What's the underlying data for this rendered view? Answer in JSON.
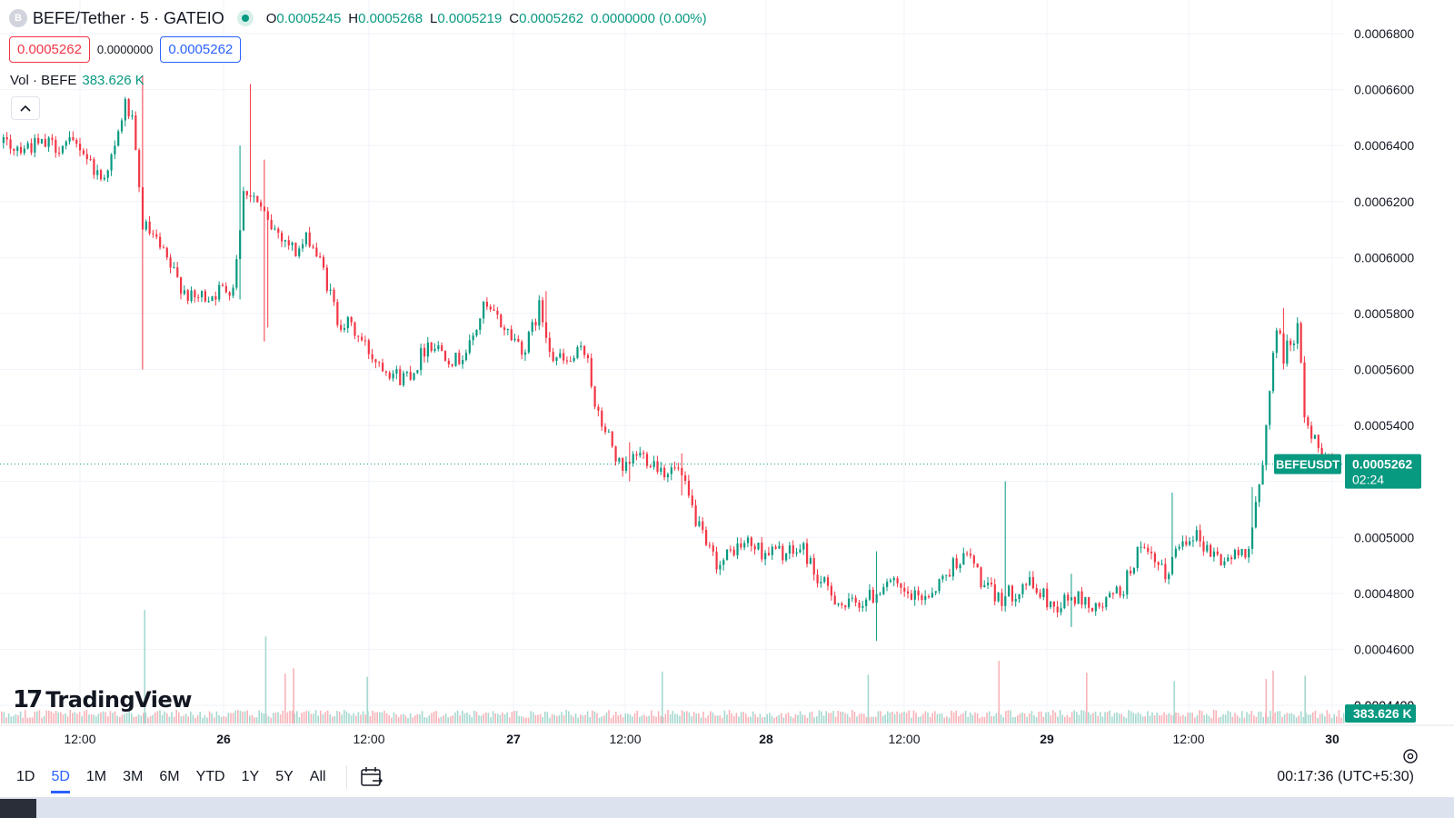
{
  "header": {
    "symbol_initial": "B",
    "title": "BEFE/Tether · 5 · GATEIO",
    "ohlc": [
      {
        "key": "O",
        "value": "0.0005245"
      },
      {
        "key": "H",
        "value": "0.0005268"
      },
      {
        "key": "L",
        "value": "0.0005219"
      },
      {
        "key": "C",
        "value": "0.0005262"
      }
    ],
    "change": "0.0000000 (0.00%)"
  },
  "trade": {
    "sell_price": "0.0005262",
    "spread": "0.0000000",
    "buy_price": "0.0005262"
  },
  "volume_legend": {
    "label": "Vol · BEFE",
    "value": "383.626 K"
  },
  "branding": {
    "mark": "17",
    "name": "TradingView"
  },
  "bottom_bar": {
    "ranges": [
      "1D",
      "5D",
      "1M",
      "3M",
      "6M",
      "YTD",
      "1Y",
      "5Y",
      "All"
    ],
    "active_range": "5D",
    "clock": "00:17:36 (UTC+5:30)"
  },
  "colors": {
    "up": "#089981",
    "down": "#f23645",
    "accent": "#2962ff",
    "up_volume": "#a6d8cf",
    "down_volume": "#f7b3b9"
  },
  "chart_data": {
    "type": "candlestick",
    "interval": "5",
    "y_axis": {
      "ticks": [
        "0.0006800",
        "0.0006600",
        "0.0006400",
        "0.0006200",
        "0.0006000",
        "0.0005800",
        "0.0005600",
        "0.0005400",
        "0.0005200",
        "0.0005000",
        "0.0004800",
        "0.0004600",
        "0.0004400"
      ],
      "range": [
        0.00043,
        0.00069
      ]
    },
    "x_axis": {
      "ticks": [
        "12:00",
        "26",
        "12:00",
        "27",
        "12:00",
        "28",
        "12:00",
        "29",
        "12:00",
        "30"
      ],
      "bold_ticks": [
        "26",
        "27",
        "28",
        "29",
        "30"
      ]
    },
    "price_path": [
      [
        0.0,
        0.00064
      ],
      [
        1.5,
        0.000628
      ],
      [
        2.5,
        0.000638
      ],
      [
        3.2,
        0.000655
      ],
      [
        3.7,
        0.00065
      ],
      [
        4.5,
        0.000612
      ],
      [
        5.5,
        0.000605
      ],
      [
        7.0,
        0.000592
      ],
      [
        8.0,
        0.000585
      ],
      [
        9.5,
        0.000587
      ],
      [
        11.0,
        0.00059
      ],
      [
        11.8,
        0.000625
      ],
      [
        12.5,
        0.000622
      ],
      [
        13.5,
        0.000612
      ],
      [
        14.5,
        0.000608
      ],
      [
        15.5,
        0.000602
      ],
      [
        16.5,
        0.000607
      ],
      [
        17.5,
        0.000595
      ],
      [
        18.5,
        0.000578
      ],
      [
        19.5,
        0.000575
      ],
      [
        21.0,
        0.000565
      ],
      [
        22.0,
        0.000561
      ],
      [
        23.0,
        0.000557
      ],
      [
        24.0,
        0.00056
      ],
      [
        25.0,
        0.00057
      ],
      [
        26.0,
        0.000567
      ],
      [
        27.0,
        0.000563
      ],
      [
        28.0,
        0.000568
      ],
      [
        29.0,
        0.000582
      ],
      [
        30.0,
        0.000578
      ],
      [
        31.0,
        0.000572
      ],
      [
        32.0,
        0.000567
      ],
      [
        33.0,
        0.000582
      ],
      [
        34.0,
        0.000565
      ],
      [
        35.0,
        0.000562
      ],
      [
        36.0,
        0.000566
      ],
      [
        36.5,
        0.000566
      ],
      [
        37.0,
        0.000545
      ],
      [
        38.0,
        0.000536
      ],
      [
        39.0,
        0.000522
      ],
      [
        40.0,
        0.00053
      ],
      [
        41.0,
        0.000528
      ],
      [
        42.0,
        0.000524
      ],
      [
        43.0,
        0.000524
      ],
      [
        44.0,
        0.00051
      ],
      [
        45.0,
        0.000496
      ],
      [
        46.0,
        0.00049
      ],
      [
        47.0,
        0.000496
      ],
      [
        48.0,
        0.000498
      ],
      [
        49.0,
        0.000495
      ],
      [
        50.0,
        0.000495
      ],
      [
        51.0,
        0.000494
      ],
      [
        52.0,
        0.000496
      ],
      [
        53.0,
        0.000485
      ],
      [
        54.0,
        0.00048
      ],
      [
        55.0,
        0.000475
      ],
      [
        56.0,
        0.000477
      ],
      [
        57.0,
        0.000479
      ],
      [
        58.0,
        0.000485
      ],
      [
        59.0,
        0.00048
      ],
      [
        60.0,
        0.000478
      ],
      [
        61.0,
        0.00048
      ],
      [
        62.0,
        0.000485
      ],
      [
        63.0,
        0.000492
      ],
      [
        64.0,
        0.000493
      ],
      [
        65.0,
        0.000482
      ],
      [
        66.0,
        0.000478
      ],
      [
        67.0,
        0.00048
      ],
      [
        68.0,
        0.000484
      ],
      [
        69.0,
        0.00048
      ],
      [
        70.0,
        0.000475
      ],
      [
        71.0,
        0.000478
      ],
      [
        72.0,
        0.000478
      ],
      [
        73.0,
        0.000474
      ],
      [
        74.0,
        0.000478
      ],
      [
        75.0,
        0.000482
      ],
      [
        76.0,
        0.000495
      ],
      [
        77.0,
        0.000492
      ],
      [
        78.0,
        0.000486
      ],
      [
        79.0,
        0.000498
      ],
      [
        80.0,
        0.000502
      ],
      [
        81.0,
        0.000496
      ],
      [
        82.0,
        0.000492
      ],
      [
        83.0,
        0.000493
      ],
      [
        84.0,
        0.000497
      ],
      [
        84.5,
        0.00051
      ],
      [
        85.0,
        0.000525
      ],
      [
        85.5,
        0.000555
      ],
      [
        86.0,
        0.000575
      ],
      [
        86.5,
        0.000565
      ],
      [
        87.0,
        0.00057
      ],
      [
        87.5,
        0.000575
      ],
      [
        88.0,
        0.000545
      ],
      [
        88.5,
        0.000536
      ],
      [
        89.0,
        0.000533
      ],
      [
        89.5,
        0.000531
      ],
      [
        90.0,
        0.000526
      ]
    ],
    "volume_spikes": [
      [
        4.6,
        1.0
      ],
      [
        13.3,
        0.75
      ],
      [
        14.7,
        0.4
      ],
      [
        15.3,
        0.45
      ],
      [
        20.6,
        0.37
      ],
      [
        41.8,
        0.42
      ],
      [
        56.6,
        0.39
      ],
      [
        66.0,
        0.52
      ],
      [
        72.3,
        0.41
      ],
      [
        85.7,
        0.43
      ],
      [
        88.0,
        0.38
      ],
      [
        85.2,
        0.35
      ],
      [
        78.6,
        0.33
      ]
    ],
    "last_price": {
      "value": 0.0005262,
      "label": "0.0005262",
      "symbol": "BEFEUSDT",
      "countdown": "02:24"
    },
    "last_volume": {
      "label": "383.626 K"
    },
    "volume_axis_partial_label": "0.0004400"
  }
}
